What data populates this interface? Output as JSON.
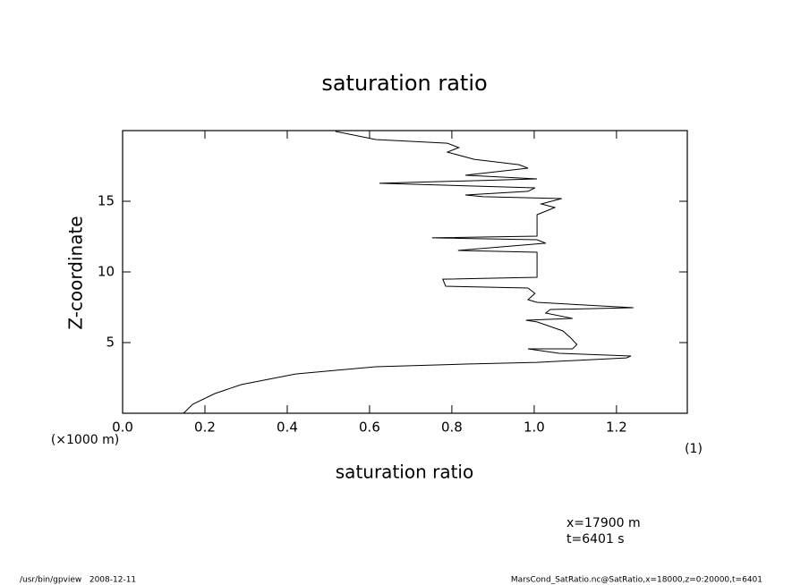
{
  "chart_data": {
    "type": "line",
    "title": "saturation ratio",
    "x_label": "saturation ratio",
    "y_label": "Z-coordinate",
    "y_unit": "(×1000 m)",
    "x_unit": "(1)",
    "annotations": [
      "x=17900 m",
      "t=6401 s"
    ],
    "footer_left": "/usr/bin/gpview   2008-12-11",
    "footer_right": "MarsCond_SatRatio.nc@SatRatio,x=18000,z=0:20000,t=6401",
    "color": "#000000",
    "x": [
      0.148,
      0.17,
      0.224,
      0.289,
      0.42,
      0.615,
      0.833,
      1.007,
      1.224,
      1.235,
      1.061,
      0.985,
      1.093,
      1.104,
      1.089,
      1.07,
      1.007,
      0.98,
      1.093,
      1.028,
      1.039,
      1.241,
      1.007,
      0.985,
      1.002,
      0.985,
      0.785,
      0.778,
      1.007,
      1.007,
      0.815,
      1.028,
      1.007,
      0.752,
      1.007,
      1.007,
      1.028,
      1.05,
      1.017,
      1.067,
      0.876,
      0.833,
      0.985,
      1.002,
      0.624,
      1.007,
      0.833,
      0.985,
      0.963,
      0.854,
      0.789,
      0.817,
      0.789,
      0.615,
      0.517
    ],
    "values": [
      0,
      0.63,
      1.39,
      2.03,
      2.78,
      3.29,
      3.48,
      3.6,
      3.92,
      4.05,
      4.24,
      4.56,
      4.56,
      4.87,
      5.32,
      5.82,
      6.46,
      6.58,
      6.71,
      7.09,
      7.34,
      7.47,
      7.85,
      8.04,
      8.48,
      8.86,
      8.99,
      9.49,
      9.62,
      11.39,
      11.52,
      12.03,
      12.28,
      12.41,
      12.53,
      14.05,
      14.3,
      14.56,
      14.81,
      15.19,
      15.32,
      15.44,
      15.7,
      15.95,
      16.27,
      16.58,
      16.84,
      17.34,
      17.59,
      17.97,
      18.48,
      18.8,
      19.11,
      19.37,
      19.94
    ],
    "xlim": [
      0,
      1.372
    ],
    "ylim": [
      0,
      20
    ],
    "xticks": [
      {
        "value": 0,
        "label": "0.0"
      },
      0.2,
      0.4,
      0.6,
      0.8,
      {
        "value": 1,
        "label": "1.0"
      },
      1.2
    ],
    "yticks": [
      5,
      10,
      15
    ]
  }
}
